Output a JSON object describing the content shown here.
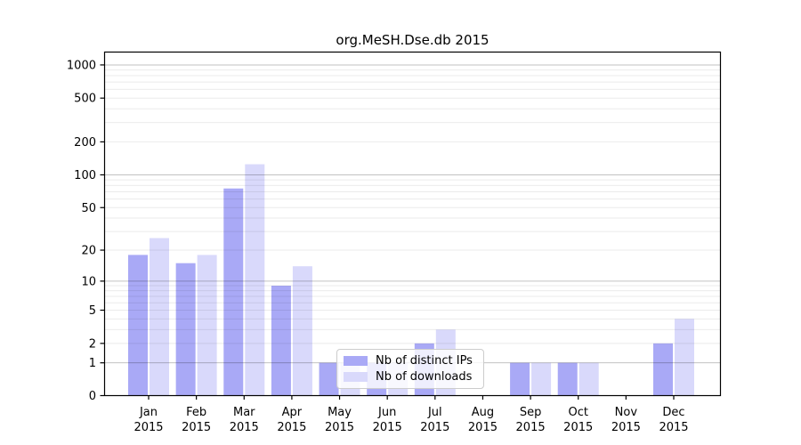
{
  "title": "org.MeSH.Dse.db 2015",
  "chart_data": {
    "type": "bar",
    "title": "org.MeSH.Dse.db 2015",
    "categories": [
      "Jan 2015",
      "Feb 2015",
      "Mar 2015",
      "Apr 2015",
      "May 2015",
      "Jun 2015",
      "Jul 2015",
      "Aug 2015",
      "Sep 2015",
      "Oct 2015",
      "Nov 2015",
      "Dec 2015"
    ],
    "series": [
      {
        "name": "Nb of distinct IPs",
        "color": "#a9a9f6",
        "values": [
          18,
          15,
          75,
          9,
          1,
          1,
          2,
          0,
          1,
          1,
          0,
          2
        ]
      },
      {
        "name": "Nb of downloads",
        "color": "#d9d9fb",
        "values": [
          26,
          18,
          125,
          14,
          1,
          1,
          3,
          0,
          1,
          1,
          0,
          4
        ]
      }
    ],
    "xlabel": "",
    "ylabel": "",
    "y_scale": "log1p",
    "y_ticks": [
      1000,
      500,
      200,
      100,
      50,
      20,
      10,
      5,
      2,
      1,
      0
    ],
    "ylim": [
      0,
      1340
    ],
    "grid": "horizontal, minor lines per integer-decade, majors at 1/10/100/1000, drawn over bars",
    "legend_position": "inside bottom-center"
  }
}
